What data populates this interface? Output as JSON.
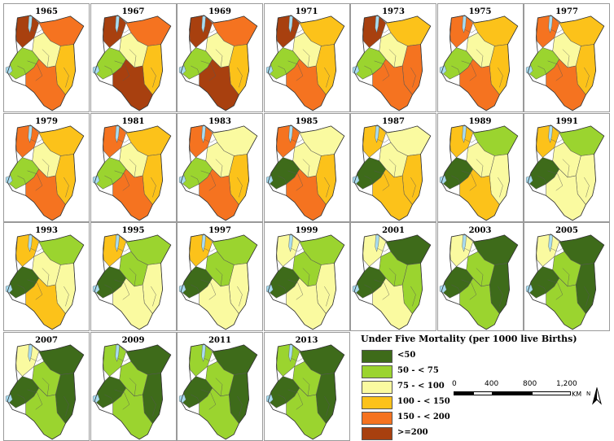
{
  "colors": {
    "c1": "#3e6b1a",
    "c2": "#9bd42f",
    "c3": "#fafaa0",
    "c4": "#fcc21a",
    "c5": "#f57320",
    "c6": "#a8400f",
    "water": "#a8dcf0",
    "border": "#555555"
  },
  "maps": [
    {
      "year": "1965",
      "palette": [
        6,
        5,
        4,
        3,
        2,
        5
      ]
    },
    {
      "year": "1967",
      "palette": [
        6,
        5,
        4,
        3,
        2,
        6
      ]
    },
    {
      "year": "1969",
      "palette": [
        6,
        5,
        4,
        3,
        2,
        6
      ]
    },
    {
      "year": "1971",
      "palette": [
        6,
        4,
        4,
        3,
        2,
        5
      ]
    },
    {
      "year": "1973",
      "palette": [
        6,
        4,
        5,
        3,
        2,
        5
      ]
    },
    {
      "year": "1975",
      "palette": [
        5,
        4,
        4,
        3,
        2,
        5
      ]
    },
    {
      "year": "1977",
      "palette": [
        5,
        4,
        4,
        3,
        2,
        5
      ]
    },
    {
      "year": "1979",
      "palette": [
        5,
        4,
        4,
        3,
        2,
        5
      ]
    },
    {
      "year": "1981",
      "palette": [
        5,
        4,
        4,
        3,
        2,
        5
      ]
    },
    {
      "year": "1983",
      "palette": [
        5,
        3,
        4,
        3,
        2,
        5
      ]
    },
    {
      "year": "1985",
      "palette": [
        5,
        3,
        4,
        3,
        1,
        5
      ]
    },
    {
      "year": "1987",
      "palette": [
        4,
        3,
        4,
        3,
        1,
        4
      ]
    },
    {
      "year": "1989",
      "palette": [
        4,
        2,
        3,
        3,
        1,
        4
      ]
    },
    {
      "year": "1991",
      "palette": [
        4,
        2,
        3,
        3,
        1,
        3
      ]
    },
    {
      "year": "1993",
      "palette": [
        4,
        2,
        3,
        3,
        1,
        4
      ]
    },
    {
      "year": "1995",
      "palette": [
        4,
        2,
        3,
        2,
        1,
        3
      ]
    },
    {
      "year": "1997",
      "palette": [
        4,
        2,
        3,
        2,
        1,
        3
      ]
    },
    {
      "year": "1999",
      "palette": [
        3,
        2,
        3,
        2,
        1,
        3
      ]
    },
    {
      "year": "2001",
      "palette": [
        3,
        1,
        2,
        2,
        1,
        3
      ]
    },
    {
      "year": "2003",
      "palette": [
        3,
        1,
        1,
        2,
        1,
        2
      ]
    },
    {
      "year": "2005",
      "palette": [
        3,
        1,
        1,
        2,
        1,
        2
      ]
    },
    {
      "year": "2007",
      "palette": [
        3,
        1,
        1,
        2,
        1,
        2
      ]
    },
    {
      "year": "2009",
      "palette": [
        2,
        1,
        1,
        2,
        1,
        2
      ]
    },
    {
      "year": "2011",
      "palette": [
        2,
        1,
        1,
        2,
        1,
        2
      ]
    },
    {
      "year": "2013",
      "palette": [
        2,
        1,
        1,
        2,
        1,
        2
      ]
    }
  ],
  "legend": {
    "title": "Under Five Mortality (per 1000 live Births)",
    "items": [
      {
        "label": "<50",
        "color": "#3e6b1a"
      },
      {
        "label": "50 - < 75",
        "color": "#9bd42f"
      },
      {
        "label": "75 - < 100",
        "color": "#fafaa0"
      },
      {
        "label": "100 - < 150",
        "color": "#fcc21a"
      },
      {
        "label": "150 - < 200",
        "color": "#f57320"
      },
      {
        "label": ">=200",
        "color": "#a8400f"
      }
    ]
  },
  "scale": {
    "ticks": [
      "0",
      "400",
      "800",
      "1,200"
    ],
    "unit": "KM"
  },
  "north_label": "N"
}
